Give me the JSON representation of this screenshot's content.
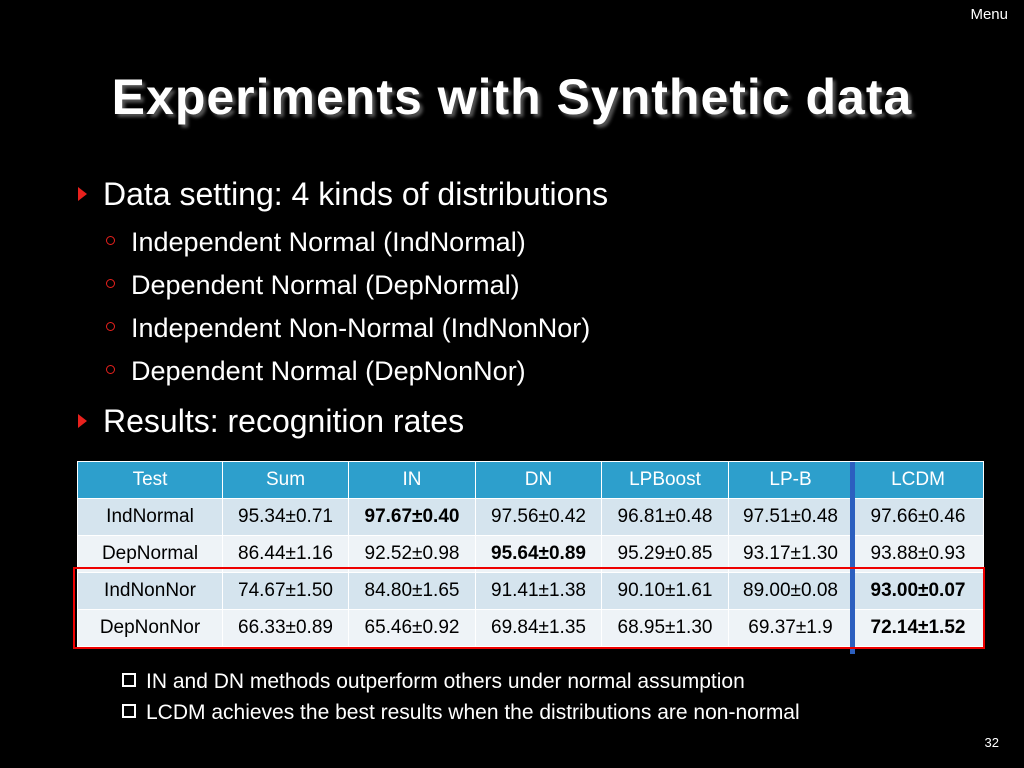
{
  "menu_label": "Menu",
  "title": "Experiments with Synthetic data",
  "bullets": {
    "setting": "Data setting: 4 kinds of distributions",
    "distributions": [
      "Independent Normal (IndNormal)",
      "Dependent Normal (DepNormal)",
      "Independent Non-Normal (IndNonNor)",
      "Dependent Normal (DepNonNor)"
    ],
    "results": "Results: recognition rates"
  },
  "table": {
    "headers": [
      "Test",
      "Sum",
      "IN",
      "DN",
      "LPBoost",
      "LP-B",
      "LCDM"
    ],
    "rows": [
      [
        "IndNormal",
        "95.34±0.71",
        "97.67±0.40",
        "97.56±0.42",
        "96.81±0.48",
        "97.51±0.48",
        "97.66±0.46"
      ],
      [
        "DepNormal",
        "86.44±1.16",
        "92.52±0.98",
        "95.64±0.89",
        "95.29±0.85",
        "93.17±1.30",
        "93.88±0.93"
      ],
      [
        "IndNonNor",
        "74.67±1.50",
        "84.80±1.65",
        "91.41±1.38",
        "90.10±1.61",
        "89.00±0.08",
        "93.00±0.07"
      ],
      [
        "DepNonNor",
        "66.33±0.89",
        "65.46±0.92",
        "69.84±1.35",
        "68.95±1.30",
        "69.37±1.9",
        "72.14±1.52"
      ]
    ]
  },
  "notes": [
    "IN and DN methods outperform others under normal assumption",
    "LCDM achieves the best results when the distributions are non-normal"
  ],
  "page_number": "32",
  "colors": {
    "header_bg": "#2d9fcc",
    "highlight_red": "#e00000",
    "highlight_blue": "#2c5fbf",
    "bullet_accent": "#e8211d"
  }
}
